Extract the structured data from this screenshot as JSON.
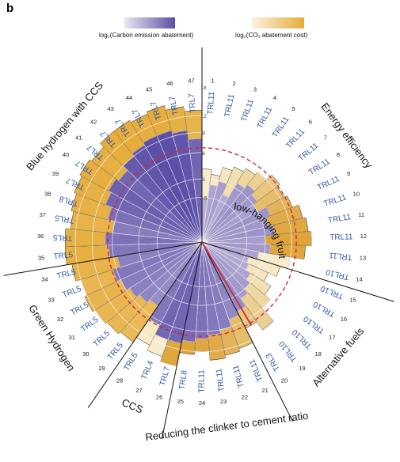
{
  "panel_label": "b",
  "legend": {
    "purple_label": "log₂(Carbon emission abatement)",
    "gold_label": "log₂(CO₂ abatement cost)",
    "purple_colors": [
      "#ece6f2",
      "#5b4fa6"
    ],
    "gold_colors": [
      "#fbf1de",
      "#e6ad3c"
    ]
  },
  "chart_data": {
    "type": "bar",
    "layout": "circular",
    "title": "",
    "radial_axis_ticks": [
      1.5,
      3,
      6,
      9,
      12,
      18
    ],
    "annotation": "low-hanging fruit",
    "annotation_threshold": 6,
    "sectors": [
      {
        "name": "Energy efficiency",
        "options": [
          1,
          14
        ]
      },
      {
        "name": "Alternative fuels",
        "options": [
          15,
          20
        ]
      },
      {
        "name": "Reducing the clinker to cement ratio",
        "options": [
          21,
          25
        ]
      },
      {
        "name": "CCS",
        "options": [
          26,
          28
        ]
      },
      {
        "name": "Green Hydrogen",
        "options": [
          29,
          34
        ]
      },
      {
        "name": "Blue hydrogen with CCS",
        "options": [
          35,
          47
        ]
      }
    ],
    "categories": [
      "1",
      "2",
      "3",
      "4",
      "5",
      "6",
      "7",
      "8",
      "9",
      "10",
      "11",
      "12",
      "13",
      "14",
      "15",
      "16",
      "17",
      "18",
      "19",
      "20",
      "21",
      "22",
      "23",
      "24",
      "25",
      "26",
      "27",
      "28",
      "29",
      "30",
      "31",
      "32",
      "33",
      "34",
      "35",
      "36",
      "37",
      "38",
      "39",
      "40",
      "41",
      "42",
      "43",
      "44",
      "45",
      "46",
      "47"
    ],
    "trl": [
      "TRL11",
      "TRL11",
      "TRL11",
      "TRL11",
      "TRL11",
      "TRL11",
      "TRL11",
      "TRL11",
      "TRL11",
      "TRL11",
      "TRL11",
      "TRL11",
      "TRL11",
      "TRL10",
      "TRL10",
      "TRL10",
      "TRL10",
      "TRL10",
      "TRL10",
      "TRL3",
      "TRL11",
      "TRL11",
      "TRL11",
      "TRL11",
      "TRL8",
      "TRL7",
      "TRL4",
      "TRL5",
      "TRL5",
      "TRL5",
      "TRL5",
      "TRL5",
      "TRL5",
      "TRL5",
      "TRL5",
      "TRL5",
      "TRL5",
      "TRL8",
      "TRL7",
      "TRL7",
      "TRL7",
      "TRL7",
      "TRL7",
      "TRL7",
      "TRL7",
      "TRL7",
      "TRL7"
    ],
    "series": [
      {
        "name": "log₂(Carbon emission abatement)",
        "values": [
          1.5,
          2.5,
          3,
          2,
          3.5,
          4,
          3.5,
          3,
          4,
          3.5,
          4,
          3,
          3.5,
          2.5,
          1.8,
          2,
          2.5,
          3,
          3.5,
          4.5,
          5,
          6,
          6.5,
          7,
          7.5,
          8,
          8,
          6.5,
          4.5,
          5,
          5.5,
          6,
          6.5,
          5.5,
          6.5,
          7,
          6,
          7,
          8,
          8.5,
          8,
          9,
          9.5,
          10,
          10,
          9.5,
          8
        ]
      },
      {
        "name": "log₂(CO₂ abatement cost)",
        "values": [
          4,
          3.5,
          4.5,
          5,
          5.5,
          6,
          7,
          6.5,
          7,
          8,
          8.5,
          9,
          8,
          6,
          5,
          4,
          5,
          6,
          8.5,
          7,
          9.5,
          10,
          10.5,
          9,
          9.5,
          12,
          11,
          10,
          11,
          11.5,
          12,
          12.5,
          12,
          13,
          14,
          14,
          13,
          13.5,
          14,
          14.5,
          14,
          15,
          15,
          14.5,
          15,
          14,
          13
        ]
      }
    ],
    "cost_colors": [
      "#f7eccd",
      "#f6e9c6",
      "#f5e5c0",
      "#f2dfb2",
      "#efd7a2",
      "#eccf92",
      "#e9c57d",
      "#e6bd6a",
      "#e3b35a",
      "#e1ab4a",
      "#e0a841",
      "#dfa53b",
      "#e0a73d"
    ],
    "grid": true
  }
}
